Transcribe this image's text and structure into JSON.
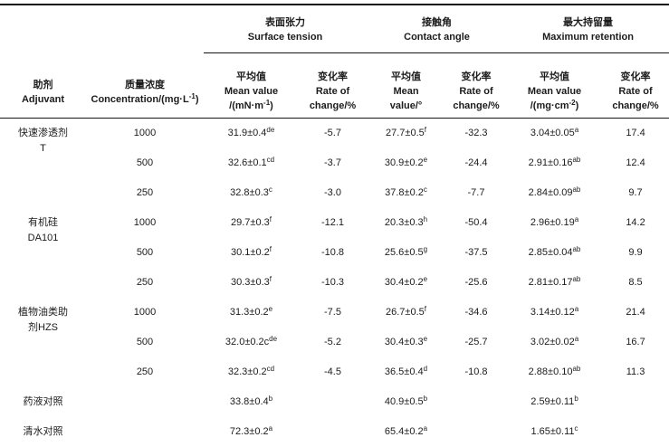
{
  "table": {
    "header": {
      "adjuvant": [
        "助剂",
        "Adjuvant"
      ],
      "concentration": [
        "质量浓度",
        "Concentration/(mg·L^{-1})"
      ],
      "groups": [
        [
          "表面张力",
          "Surface tension"
        ],
        [
          "接触角",
          "Contact angle"
        ],
        [
          "最大持留量",
          "Maximum retention"
        ]
      ],
      "subcols": [
        [
          "平均值",
          "Mean value",
          "/(mN·m^{-1})"
        ],
        [
          "变化率",
          "Rate of",
          "change/%"
        ],
        [
          "平均值",
          "Mean",
          "value/°"
        ],
        [
          "变化率",
          "Rate of",
          "change/%"
        ],
        [
          "平均值",
          "Mean value",
          "/(mg·cm^{-2})"
        ],
        [
          "变化率",
          "Rate of",
          "change/%"
        ]
      ]
    },
    "rows": [
      {
        "label": [
          "快速渗透剂",
          "T"
        ],
        "rowspan": 3,
        "conc": "1000",
        "cells": [
          "31.9±0.4^{de}",
          "-5.7",
          "27.7±0.5^{f}",
          "-32.3",
          "3.04±0.05^{a}",
          "17.4"
        ]
      },
      {
        "conc": "500",
        "cells": [
          "32.6±0.1^{cd}",
          "-3.7",
          "30.9±0.2^{e}",
          "-24.4",
          "2.91±0.16^{ab}",
          "12.4"
        ]
      },
      {
        "conc": "250",
        "cells": [
          "32.8±0.3^{c}",
          "-3.0",
          "37.8±0.2^{c}",
          "-7.7",
          "2.84±0.09^{ab}",
          "9.7"
        ]
      },
      {
        "label": [
          "有机硅",
          "DA101"
        ],
        "rowspan": 3,
        "conc": "1000",
        "cells": [
          "29.7±0.3^{f}",
          "-12.1",
          "20.3±0.3^{h}",
          "-50.4",
          "2.96±0.19^{a}",
          "14.2"
        ]
      },
      {
        "conc": "500",
        "cells": [
          "30.1±0.2^{f}",
          "-10.8",
          "25.6±0.5^{g}",
          "-37.5",
          "2.85±0.04^{ab}",
          "9.9"
        ]
      },
      {
        "conc": "250",
        "cells": [
          "30.3±0.3^{f}",
          "-10.3",
          "30.4±0.2^{e}",
          "-25.6",
          "2.81±0.17^{ab}",
          "8.5"
        ]
      },
      {
        "label": [
          "植物油类助",
          "剂HZS"
        ],
        "rowspan": 3,
        "conc": "1000",
        "cells": [
          "31.3±0.2^{e}",
          "-7.5",
          "26.7±0.5^{f}",
          "-34.6",
          "3.14±0.12^{a}",
          "21.4"
        ]
      },
      {
        "conc": "500",
        "cells": [
          "32.0±0.2c^{de}",
          "-5.2",
          "30.4±0.3^{e}",
          "-25.7",
          "3.02±0.02^{a}",
          "16.7"
        ]
      },
      {
        "conc": "250",
        "cells": [
          "32.3±0.2^{cd}",
          "-4.5",
          "36.5±0.4^{d}",
          "-10.8",
          "2.88±0.10^{ab}",
          "11.3"
        ]
      },
      {
        "label": [
          "药液对照"
        ],
        "conc": "",
        "cells": [
          "33.8±0.4^{b}",
          "",
          "40.9±0.5^{b}",
          "",
          "2.59±0.11^{b}",
          ""
        ]
      },
      {
        "label": [
          "清水对照"
        ],
        "conc": "",
        "cells": [
          "72.3±0.2^{a}",
          "",
          "65.4±0.2^{a}",
          "",
          "1.65±0.11^{c}",
          ""
        ]
      }
    ]
  }
}
